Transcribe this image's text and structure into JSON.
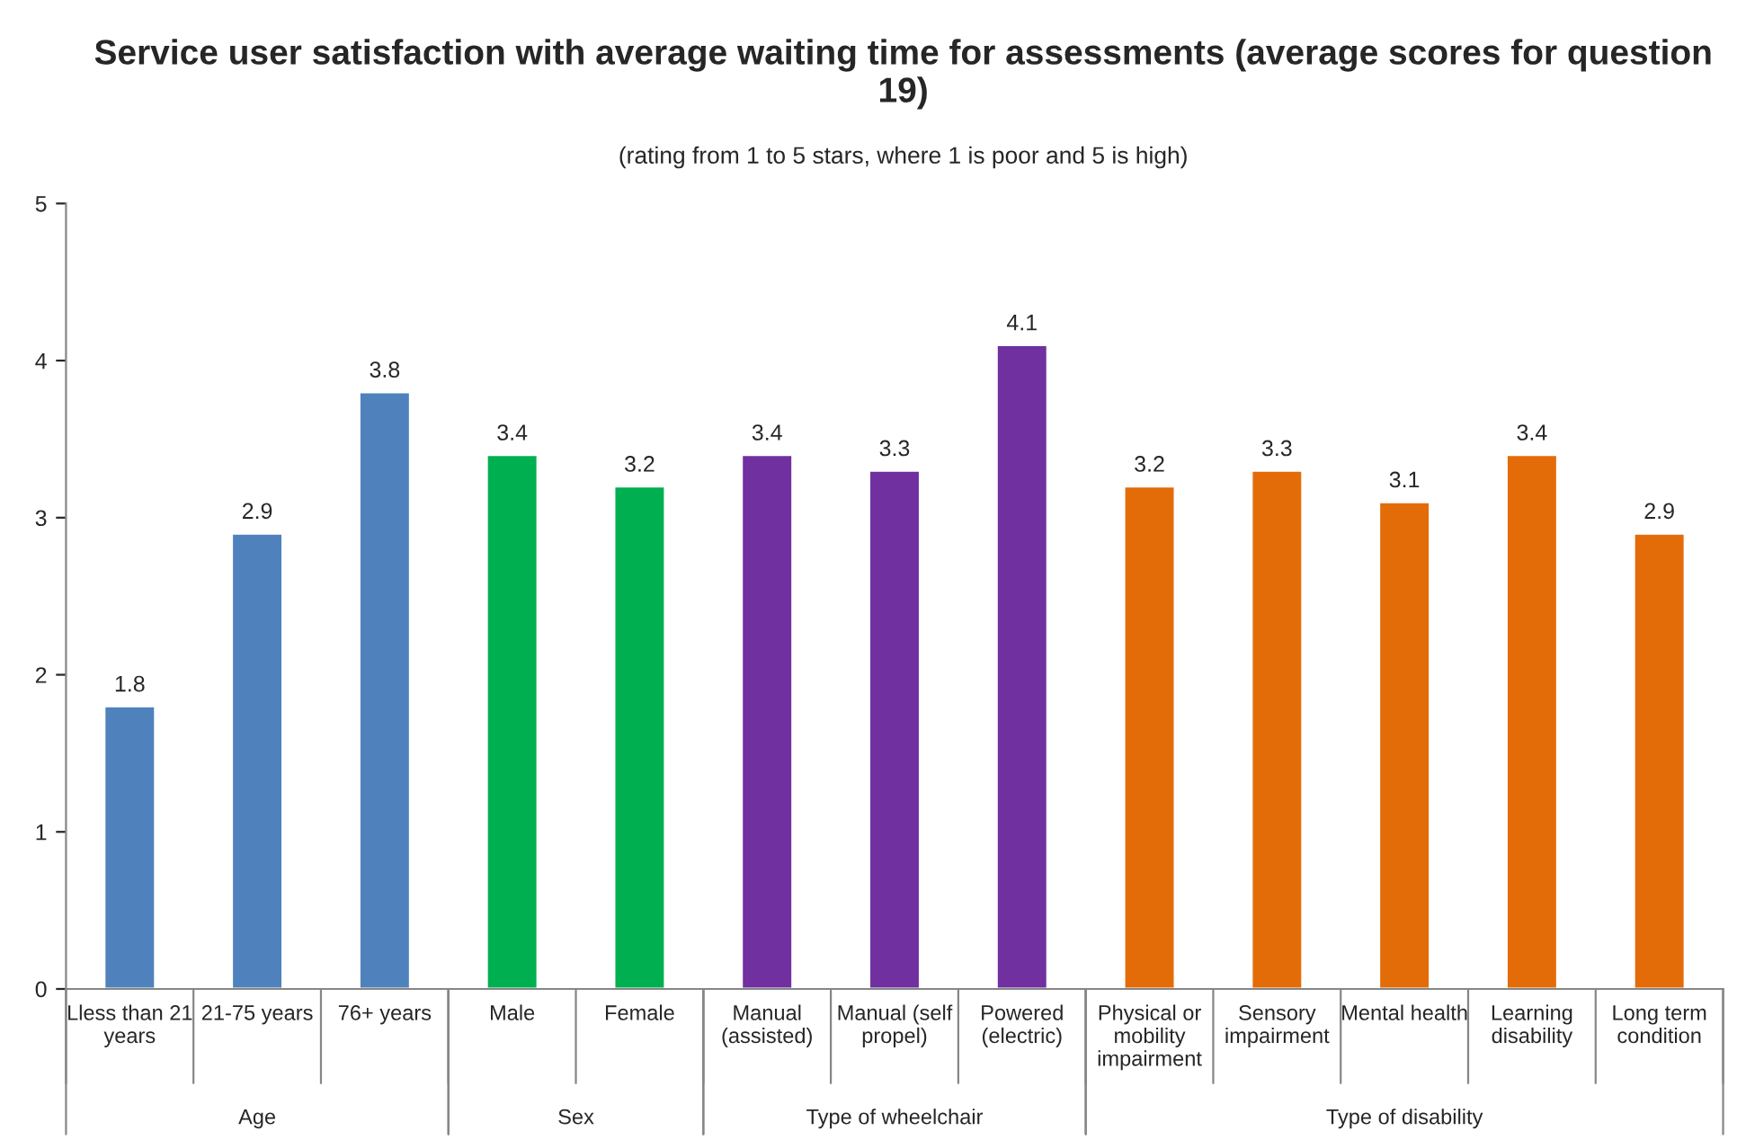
{
  "chart_data": {
    "type": "bar",
    "title": "Service user satisfaction with average waiting time for assessments (average scores for question 19)",
    "subtitle": "(rating from 1 to 5 stars, where 1 is poor and 5 is high)",
    "categories": [
      "Lless than 21 years",
      "21-75 years",
      "76+ years",
      "Male",
      "Female",
      "Manual (assisted)",
      "Manual (self propel)",
      "Powered (electric)",
      "Physical or mobility impairment",
      "Sensory impairment",
      "Mental health",
      "Learning disability",
      "Long term condition"
    ],
    "series": [
      {
        "color": "#4f81bd",
        "values": [
          1.8,
          2.9,
          3.8,
          null,
          null,
          null,
          null,
          null,
          null,
          null,
          null,
          null,
          null
        ]
      },
      {
        "color": "#00b050",
        "values": [
          null,
          null,
          null,
          3.4,
          3.2,
          null,
          null,
          null,
          null,
          null,
          null,
          null,
          null
        ]
      },
      {
        "color": "#7030a0",
        "values": [
          null,
          null,
          null,
          null,
          null,
          3.4,
          3.3,
          4.1,
          null,
          null,
          null,
          null,
          null
        ]
      },
      {
        "color": "#e36c09",
        "values": [
          null,
          null,
          null,
          null,
          null,
          null,
          null,
          null,
          3.2,
          3.3,
          3.1,
          3.4,
          2.9
        ]
      }
    ],
    "annotations": [
      "Age",
      "Sex",
      "Type of wheelchair",
      "Type of disability"
    ],
    "ylim": [
      0,
      5
    ],
    "yticks": [
      0,
      1,
      2,
      3,
      4,
      5
    ],
    "grid": false,
    "legend": false,
    "data_labels": true
  }
}
